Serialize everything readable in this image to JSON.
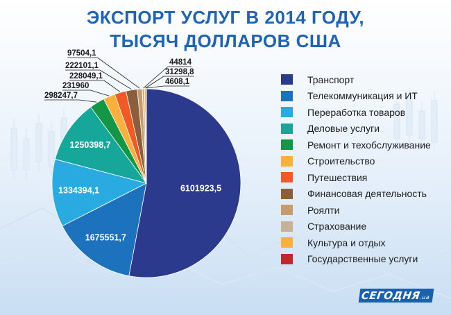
{
  "title_line1": "ЭКСПОРТ УСЛУГ В 2014 ГОДУ,",
  "title_line2": "ТЫСЯЧ ДОЛЛАРОВ США",
  "brand": "СЕГОДНЯ",
  "brand_suffix": ".ua",
  "colors": {
    "title": "#1e63b4",
    "background": "#dbe9f7"
  },
  "chart_data": {
    "type": "pie",
    "title": "ЭКСПОРТ УСЛУГ В 2014 ГОДУ, ТЫСЯЧ ДОЛЛАРОВ США",
    "legend_position": "right",
    "unit": "тысяч долларов США",
    "categories": [
      "Транспорт",
      "Телекоммуникация и ИТ",
      "Переработка товаров",
      "Деловые услуги",
      "Ремонт и техобслуживание",
      "Строительство",
      "Путешествия",
      "Финансовая деятельность",
      "Роялти",
      "Страхование",
      "Культура и отдых",
      "Государственные услуги"
    ],
    "values": [
      6101923.5,
      1675551.7,
      1334394.1,
      1250398.7,
      298247.7,
      231960,
      228049.1,
      222101.1,
      97504.1,
      44814,
      31298.8,
      4608.1
    ],
    "value_labels": [
      "6101923,5",
      "1675551,7",
      "1334394,1",
      "1250398,7",
      "298247,7",
      "231960",
      "228049,1",
      "222101,1",
      "97504,1",
      "44814",
      "31298,8",
      "4608,1"
    ],
    "colors": [
      "#2b3a8c",
      "#1c72bd",
      "#29abe2",
      "#17a79a",
      "#139645",
      "#fbb03b",
      "#f15a24",
      "#8b5e3c",
      "#c69c6d",
      "#c7b299",
      "#fbb03b",
      "#c1272d"
    ]
  }
}
